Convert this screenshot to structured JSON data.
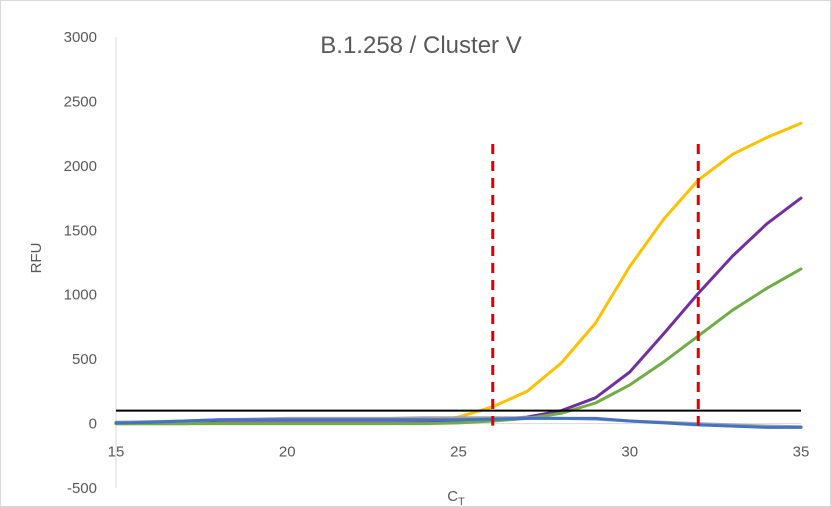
{
  "chart_data": {
    "type": "line",
    "title": "B.1.258 / Cluster V",
    "xlabel_main": "C",
    "xlabel_sub": "T",
    "ylabel": "RFU",
    "xlim": [
      15,
      35
    ],
    "ylim": [
      -500,
      3000
    ],
    "xticks": [
      15,
      20,
      25,
      30,
      35
    ],
    "yticks": [
      -500,
      0,
      500,
      1000,
      1500,
      2000,
      2500,
      3000
    ],
    "grid": false,
    "legend": "none",
    "x": [
      15,
      16,
      17,
      18,
      19,
      20,
      21,
      22,
      23,
      24,
      25,
      26,
      27,
      28,
      29,
      30,
      31,
      32,
      33,
      34,
      35
    ],
    "series": [
      {
        "color": "#ffc000",
        "values": [
          0,
          0,
          0,
          0,
          0,
          0,
          0,
          0,
          0,
          10,
          50,
          130,
          250,
          470,
          780,
          1220,
          1590,
          1890,
          2090,
          2220,
          2330
        ]
      },
      {
        "color": "#7030a0",
        "values": [
          0,
          0,
          0,
          5,
          5,
          5,
          5,
          5,
          5,
          5,
          15,
          30,
          50,
          100,
          200,
          400,
          700,
          1010,
          1300,
          1550,
          1750
        ]
      },
      {
        "color": "#70ad47",
        "values": [
          0,
          0,
          0,
          0,
          0,
          0,
          0,
          0,
          0,
          0,
          5,
          20,
          40,
          80,
          160,
          300,
          480,
          680,
          880,
          1050,
          1200
        ]
      },
      {
        "color": "#a5a5a5",
        "values": [
          10,
          15,
          20,
          30,
          35,
          40,
          40,
          40,
          40,
          45,
          45,
          45,
          45,
          40,
          35,
          20,
          10,
          0,
          -10,
          -20,
          -25
        ]
      },
      {
        "color": "#4472c4",
        "values": [
          5,
          10,
          20,
          30,
          30,
          30,
          30,
          30,
          30,
          30,
          30,
          35,
          40,
          40,
          40,
          20,
          5,
          -10,
          -20,
          -30,
          -30
        ]
      }
    ],
    "threshold": {
      "y": 100,
      "color": "#000000"
    },
    "markers": [
      {
        "x": 26,
        "color": "#e00000"
      },
      {
        "x": 32,
        "color": "#e00000"
      }
    ]
  }
}
